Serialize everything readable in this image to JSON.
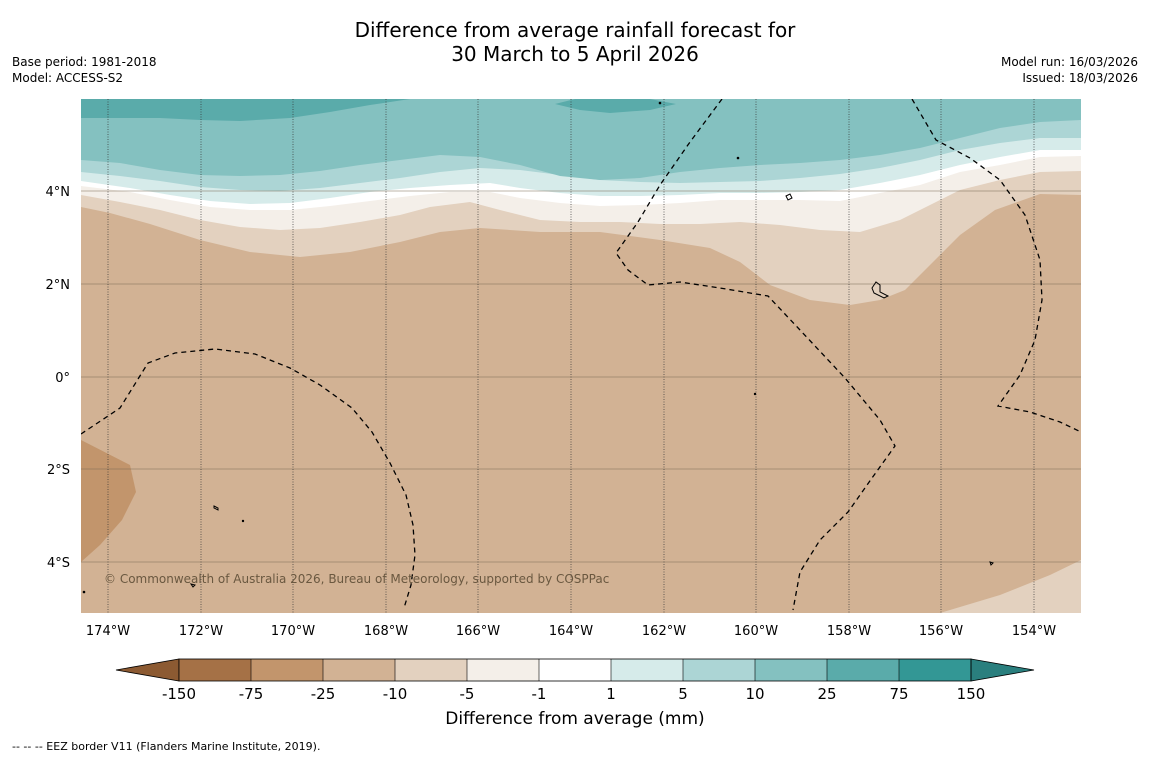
{
  "title": {
    "line1": "Difference from average rainfall forecast for",
    "line2": "30 March to 5 April 2026"
  },
  "meta_left": {
    "base_period": "Base period: 1981-2018",
    "model": "Model: ACCESS-S2"
  },
  "meta_right": {
    "model_run": "Model run: 16/03/2026",
    "issued": "Issued: 18/03/2026"
  },
  "map": {
    "lat_labels": [
      "4°N",
      "2°N",
      "0°",
      "2°S",
      "4°S"
    ],
    "lon_labels": [
      "174°W",
      "172°W",
      "170°W",
      "168°W",
      "166°W",
      "164°W",
      "162°W",
      "160°W",
      "158°W",
      "156°W",
      "154°W"
    ],
    "copyright": "© Commonwealth of Australia 2026, Bureau of Meteorology, supported by COSPPac"
  },
  "colors": {
    "dry_150": "#a57146",
    "dry_75": "#c2956c",
    "dry_25": "#d2b294",
    "dry_10": "#e3d1bf",
    "dry_5": "#f4efe9",
    "neutral": "#ffffff",
    "wet_5": "#d6ebea",
    "wet_10": "#acd5d5",
    "wet_25": "#84c1c0",
    "wet_75": "#5aabaa",
    "wet_150": "#339795",
    "wet_over": "#2a7f7e",
    "dry_under": "#8c5a32"
  },
  "legend": {
    "ticks": [
      "-150",
      "-75",
      "-25",
      "-10",
      "-5",
      "-1",
      "1",
      "5",
      "10",
      "25",
      "75",
      "150"
    ],
    "title": "Difference from average (mm)"
  },
  "footnote": "--  --  -- EEZ border V11 (Flanders Marine Institute, 2019)."
}
